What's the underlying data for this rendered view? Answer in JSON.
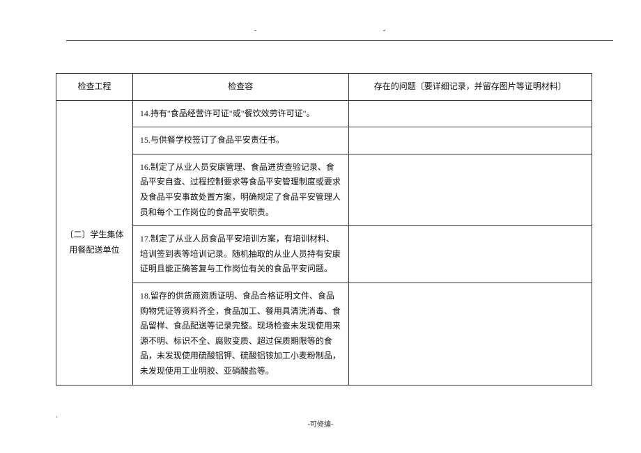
{
  "marks": {
    "dash_left": "-",
    "dash_right": "-"
  },
  "headers": {
    "col1": "检查工程",
    "col2": "检查容",
    "col3": "存在的问题〔要详细记录，并留存图片等证明材料〕"
  },
  "category": "〔二〕学生集体用餐配送单位",
  "rows": [
    "14.持有\"食品经营许可证\"或\"餐饮效劳许可证\"。",
    "15.与供餐学校签订了食品平安责任书。",
    "16.制定了从业人员安康管理、食品进货查验记录、食品平安自查、过程控制要求等食品平安管理制度或要求及食品平安事故处置方案，明确规定了食品平安管理人员和每个工作岗位的食品平安职责。",
    "17.制定了从业人员食品平安培训方案，有培训材料、培训签到表等培训记录。随机抽取的从业人员持有安康证明且能正确答复与工作岗位有关的食品平安问题。",
    "18.留存的供货商资质证明、食品合格证明文件、食品购物凭证等资料齐全，食品加工、餐用具清洗消毒、食品留样、食品配送等记录完整。现场检查未发现使用来源不明、标识不全、腐败变质、超过保质期限等的食品，未发现使用硫酸铝钾、硫酸铝铵加工小麦粉制品，未发现使用工业明胶、亚硝酸盐等。"
  ],
  "footer": {
    "dot": ".",
    "center": "-可修编-"
  }
}
